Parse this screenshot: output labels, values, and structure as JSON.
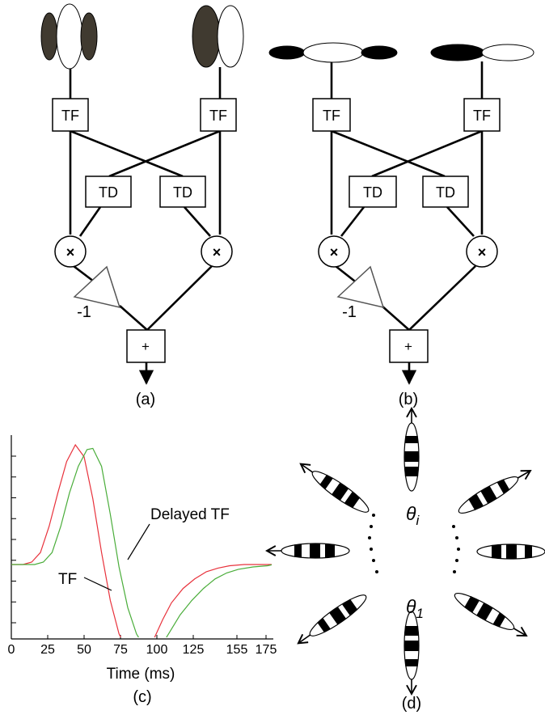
{
  "panels": {
    "a": {
      "caption": "(a)",
      "tf_labels": [
        "TF",
        "TF"
      ],
      "td_labels": [
        "TD",
        "TD"
      ],
      "multiply": [
        "×",
        "×"
      ],
      "gain_label": "-1",
      "sum": "+",
      "receptive_field_colors": {
        "on": "#ffffff",
        "off": "#403a30"
      }
    },
    "b": {
      "caption": "(b)",
      "tf_labels": [
        "TF",
        "TF"
      ],
      "td_labels": [
        "TD",
        "TD"
      ],
      "multiply": [
        "×",
        "×"
      ],
      "gain_label": "-1",
      "sum": "+",
      "receptive_field_colors": {
        "on": "#ffffff",
        "off": "#000000"
      }
    },
    "c": {
      "caption": "(c)",
      "annotations": [
        "Delayed TF",
        "TF"
      ]
    },
    "d": {
      "caption": "(d)",
      "label_top": "θ",
      "label_top_sub": "i",
      "label_bottom": "θ",
      "label_bottom_sub": "1"
    }
  },
  "chart_data": {
    "type": "line",
    "xlabel": "Time (ms)",
    "ylabel": "",
    "xlim": [
      0,
      180
    ],
    "x_ticks": [
      0,
      25,
      50,
      75,
      100,
      125,
      155,
      175
    ],
    "y_tick_count": 9,
    "series": [
      {
        "name": "TF",
        "color": "#e8323c",
        "x": [
          0,
          8,
          14,
          20,
          26,
          32,
          38,
          44,
          50,
          56,
          62,
          68,
          74,
          80,
          86,
          92,
          98,
          104,
          110,
          118,
          126,
          134,
          142,
          150,
          160,
          170,
          180
        ],
        "y": [
          0.0,
          0.0,
          0.02,
          0.1,
          0.32,
          0.6,
          0.86,
          1.0,
          0.9,
          0.55,
          0.1,
          -0.3,
          -0.58,
          -0.72,
          -0.76,
          -0.74,
          -0.62,
          -0.46,
          -0.32,
          -0.2,
          -0.12,
          -0.06,
          -0.03,
          -0.01,
          0.0,
          0.0,
          0.0
        ]
      },
      {
        "name": "Delayed TF",
        "color": "#4aad3a",
        "x": [
          0,
          16,
          22,
          28,
          34,
          40,
          46,
          52,
          56,
          62,
          68,
          74,
          80,
          86,
          92,
          98,
          104,
          110,
          116,
          124,
          132,
          140,
          148,
          156,
          166,
          176,
          180
        ],
        "y": [
          0.0,
          0.0,
          0.02,
          0.1,
          0.32,
          0.6,
          0.82,
          0.96,
          0.97,
          0.82,
          0.42,
          -0.02,
          -0.36,
          -0.58,
          -0.7,
          -0.7,
          -0.66,
          -0.54,
          -0.42,
          -0.3,
          -0.2,
          -0.12,
          -0.07,
          -0.04,
          -0.02,
          -0.01,
          0.0
        ]
      }
    ]
  }
}
